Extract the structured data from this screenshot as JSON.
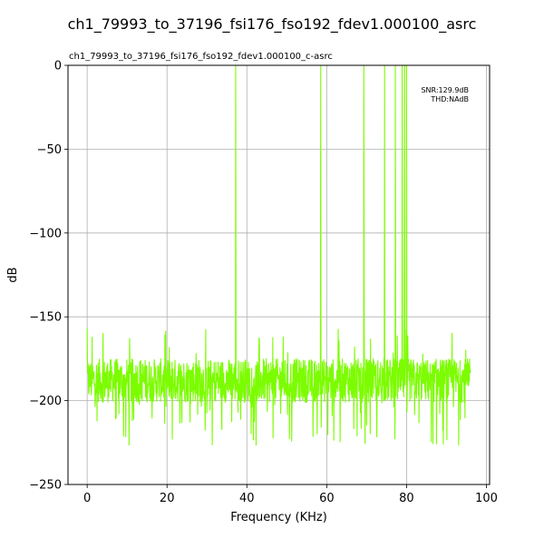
{
  "figure": {
    "suptitle": "ch1_79993_to_37196_fsi176_fso192_fdev1.000100_asrc"
  },
  "chart_data": {
    "type": "line",
    "title": "ch1_79993_to_37196_fsi176_fso192_fdev1.000100_c-asrc",
    "xlabel": "Frequency (KHz)",
    "ylabel": "dB",
    "xlim": [
      -4.8,
      100.8
    ],
    "ylim": [
      -250,
      0
    ],
    "xticks": [
      0,
      20,
      40,
      60,
      80,
      100
    ],
    "xtick_labels": [
      "0",
      "20",
      "40",
      "60",
      "80",
      "100"
    ],
    "yticks": [
      0,
      -50,
      -100,
      -150,
      -200,
      -250
    ],
    "ytick_labels": [
      "0",
      "−50",
      "−100",
      "−150",
      "−200",
      "−250"
    ],
    "grid": true,
    "annotations": [
      "SNR:129.9dB",
      "THD:NAdB"
    ],
    "series": [
      {
        "color": "#7cfc00",
        "noise_floor": {
          "x_range": [
            0,
            96
          ],
          "mean": -188,
          "min": -227,
          "max": -157
        },
        "peaks_x": [
          37.2,
          58.5,
          69.3,
          74.5,
          77.2,
          78.9,
          79.5,
          80.0
        ]
      }
    ]
  }
}
